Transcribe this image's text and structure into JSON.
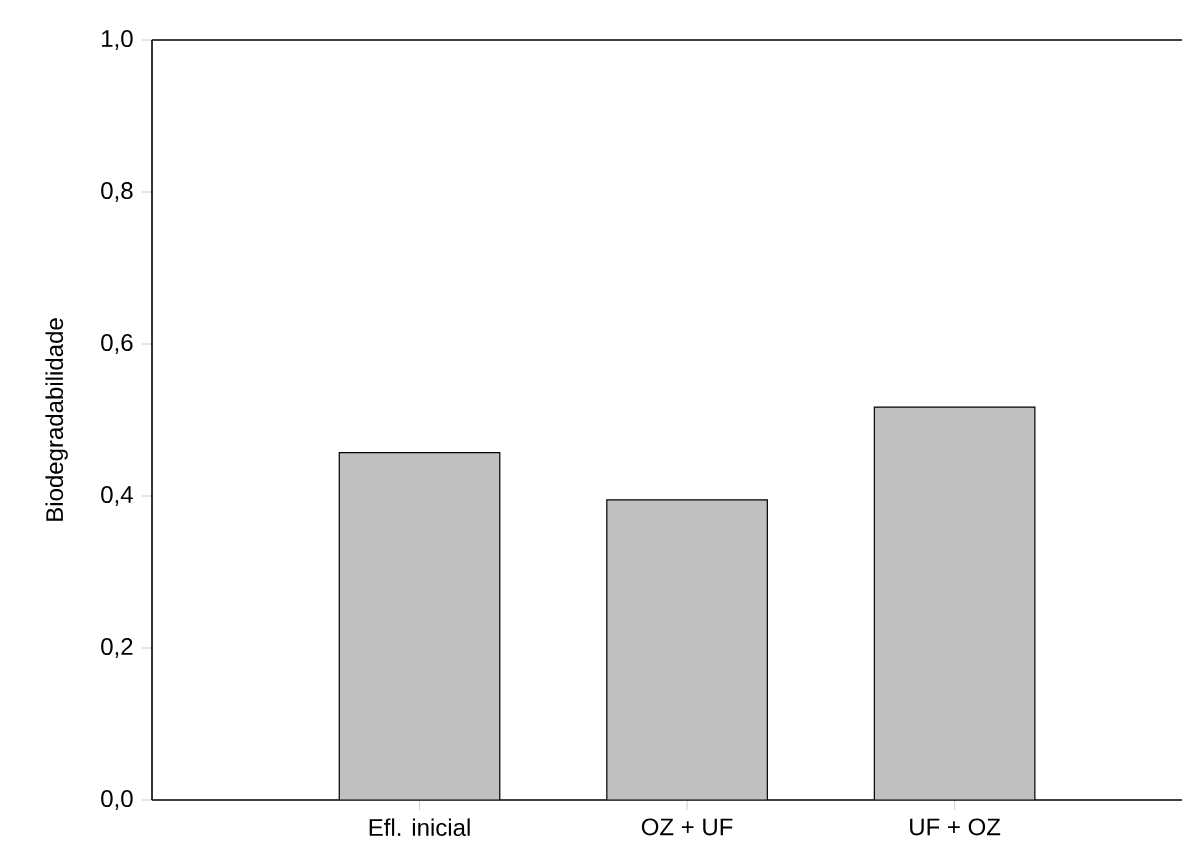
{
  "chart_data": {
    "type": "bar",
    "ylabel": "Biodegradabilidade",
    "categories": [
      "Efl. inicial",
      "OZ + UF",
      "UF + OZ"
    ],
    "values": [
      0.457,
      0.395,
      0.517
    ],
    "color": "#c0c0c0",
    "ylim": [
      0,
      1.0
    ],
    "yticks": [
      {
        "value": 0,
        "label": "0,0"
      },
      {
        "value": 0.2,
        "label": "0,2"
      },
      {
        "value": 0.4,
        "label": "0,4"
      },
      {
        "value": 0.6,
        "label": "0,6"
      },
      {
        "value": 0.8,
        "label": "0,8"
      },
      {
        "value": 1.0,
        "label": "1,0"
      }
    ]
  }
}
